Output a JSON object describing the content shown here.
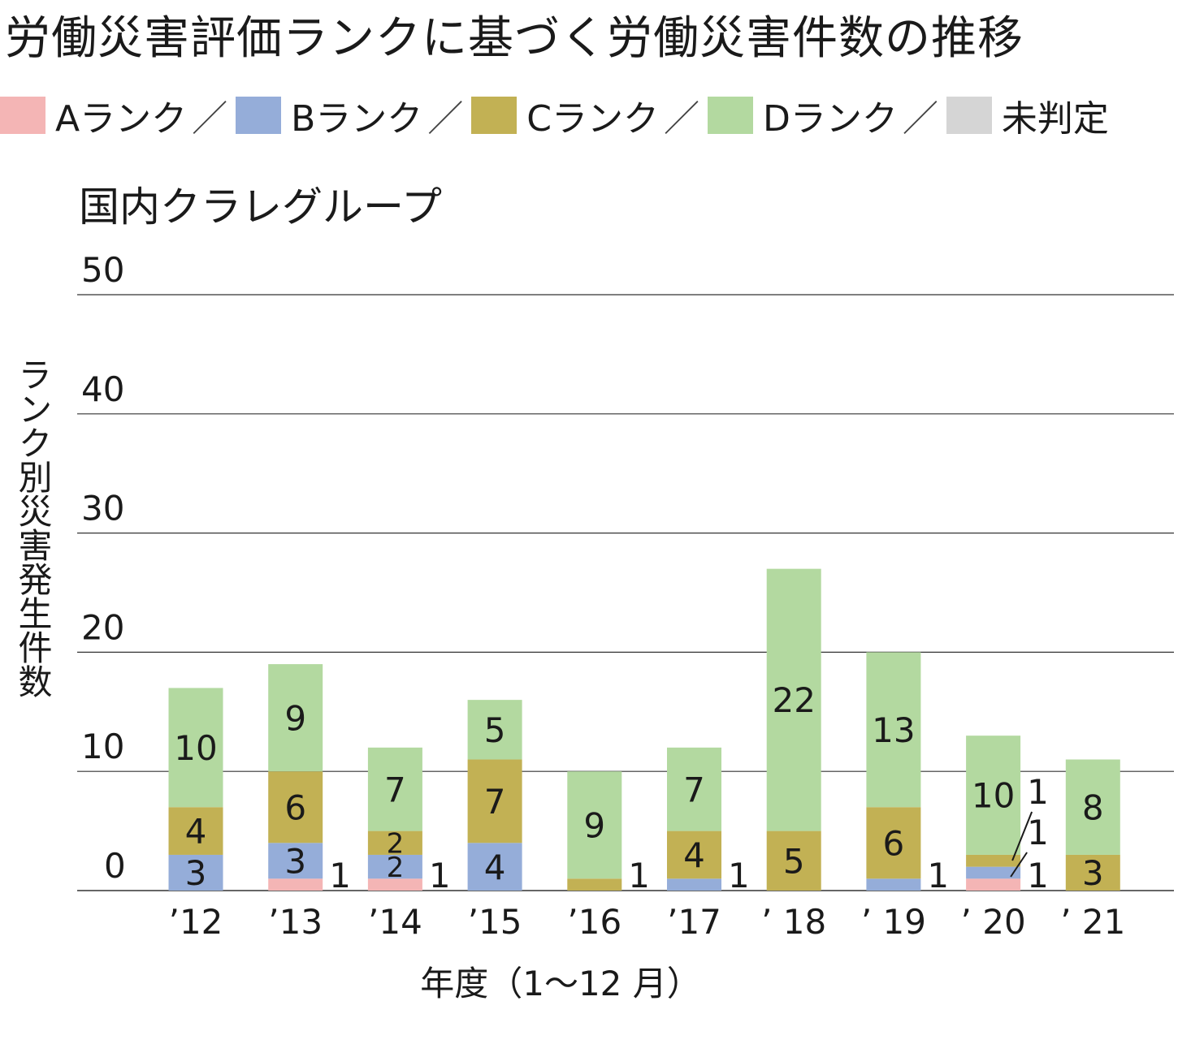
{
  "title": "労働災害評価ランクに基づく労働災害件数の推移",
  "legend": {
    "separator": "／",
    "items": [
      {
        "label": "Aランク",
        "color": "#f4b5b5"
      },
      {
        "label": "Bランク",
        "color": "#95add9"
      },
      {
        "label": "Cランク",
        "color": "#c2b154"
      },
      {
        "label": "Dランク",
        "color": "#b3d9a0"
      },
      {
        "label": "未判定",
        "color": "#d5d5d5"
      }
    ]
  },
  "chart_data": {
    "type": "bar",
    "stacked": true,
    "subtitle": "国内クラレグループ",
    "ylabel": "ランク別災害発生件数",
    "xlabel": "年度（1〜12 月）",
    "ylim": [
      0,
      50
    ],
    "yticks": [
      0,
      10,
      20,
      30,
      40,
      50
    ],
    "grid": true,
    "categories": [
      "’12",
      "’13",
      "’14",
      "’15",
      "’16",
      "’17",
      "’ 18",
      "’ 19",
      "’ 20",
      "’ 21"
    ],
    "series": [
      {
        "name": "Aランク",
        "color": "#f4b5b5",
        "values": [
          0,
          1,
          1,
          0,
          0,
          0,
          0,
          0,
          1,
          0
        ]
      },
      {
        "name": "Bランク",
        "color": "#95add9",
        "values": [
          3,
          3,
          2,
          4,
          0,
          1,
          0,
          1,
          1,
          0
        ]
      },
      {
        "name": "Cランク",
        "color": "#c2b154",
        "values": [
          4,
          6,
          2,
          7,
          1,
          4,
          5,
          6,
          1,
          3
        ]
      },
      {
        "name": "Dランク",
        "color": "#b3d9a0",
        "values": [
          10,
          9,
          7,
          5,
          9,
          7,
          22,
          13,
          10,
          8
        ]
      },
      {
        "name": "未判定",
        "color": "#d5d5d5",
        "values": [
          0,
          0,
          0,
          0,
          0,
          0,
          0,
          0,
          0,
          0
        ]
      }
    ],
    "bar_labels": [
      {
        "category": 0,
        "series": 1,
        "text": "3"
      },
      {
        "category": 0,
        "series": 2,
        "text": "4"
      },
      {
        "category": 0,
        "series": 3,
        "text": "10"
      },
      {
        "category": 1,
        "series": 1,
        "text": "3"
      },
      {
        "category": 1,
        "series": 2,
        "text": "6"
      },
      {
        "category": 1,
        "series": 3,
        "text": "9"
      },
      {
        "category": 2,
        "series": 1,
        "text": "2"
      },
      {
        "category": 2,
        "series": 2,
        "text": "2"
      },
      {
        "category": 2,
        "series": 3,
        "text": "7"
      },
      {
        "category": 3,
        "series": 1,
        "text": "4"
      },
      {
        "category": 3,
        "series": 2,
        "text": "7"
      },
      {
        "category": 3,
        "series": 3,
        "text": "5"
      },
      {
        "category": 4,
        "series": 3,
        "text": "9"
      },
      {
        "category": 5,
        "series": 2,
        "text": "4"
      },
      {
        "category": 5,
        "series": 3,
        "text": "7"
      },
      {
        "category": 6,
        "series": 2,
        "text": "5"
      },
      {
        "category": 6,
        "series": 3,
        "text": "22"
      },
      {
        "category": 7,
        "series": 2,
        "text": "6"
      },
      {
        "category": 7,
        "series": 3,
        "text": "13"
      },
      {
        "category": 8,
        "series": 3,
        "text": "10"
      },
      {
        "category": 9,
        "series": 2,
        "text": "3"
      },
      {
        "category": 9,
        "series": 3,
        "text": "8"
      }
    ],
    "side_labels": [
      {
        "category": 1,
        "text": "1"
      },
      {
        "category": 2,
        "text": "1"
      },
      {
        "category": 4,
        "text": "1"
      },
      {
        "category": 5,
        "text": "1"
      },
      {
        "category": 7,
        "text": "1"
      },
      {
        "category": 8,
        "text": "1"
      },
      {
        "category": 8,
        "text": "1"
      },
      {
        "category": 8,
        "text": "1"
      }
    ]
  }
}
